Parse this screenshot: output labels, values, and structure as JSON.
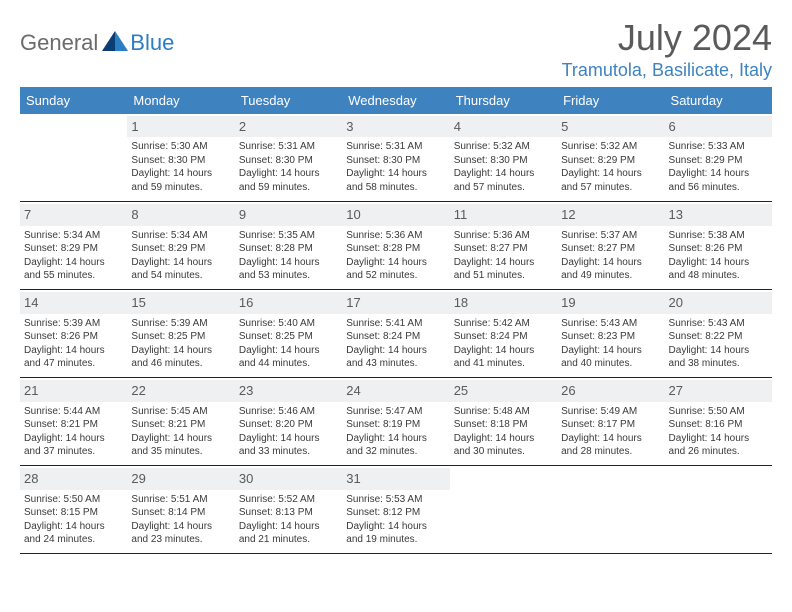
{
  "logo": {
    "text1": "General",
    "text2": "Blue"
  },
  "title": "July 2024",
  "location": "Tramutola, Basilicate, Italy",
  "colors": {
    "header_bg": "#3e83c0",
    "header_text": "#ffffff",
    "title_color": "#5a5a5a",
    "location_color": "#3e83c0",
    "cell_text": "#3a3a3a",
    "daynum_bg": "#eef0f1",
    "border_color": "#0a2a4a",
    "logo_gray": "#6b6b6b",
    "logo_blue": "#2a7ec4"
  },
  "dayNames": [
    "Sunday",
    "Monday",
    "Tuesday",
    "Wednesday",
    "Thursday",
    "Friday",
    "Saturday"
  ],
  "weeks": [
    [
      {
        "num": "",
        "lines": []
      },
      {
        "num": "1",
        "lines": [
          "Sunrise: 5:30 AM",
          "Sunset: 8:30 PM",
          "Daylight: 14 hours and 59 minutes."
        ]
      },
      {
        "num": "2",
        "lines": [
          "Sunrise: 5:31 AM",
          "Sunset: 8:30 PM",
          "Daylight: 14 hours and 59 minutes."
        ]
      },
      {
        "num": "3",
        "lines": [
          "Sunrise: 5:31 AM",
          "Sunset: 8:30 PM",
          "Daylight: 14 hours and 58 minutes."
        ]
      },
      {
        "num": "4",
        "lines": [
          "Sunrise: 5:32 AM",
          "Sunset: 8:30 PM",
          "Daylight: 14 hours and 57 minutes."
        ]
      },
      {
        "num": "5",
        "lines": [
          "Sunrise: 5:32 AM",
          "Sunset: 8:29 PM",
          "Daylight: 14 hours and 57 minutes."
        ]
      },
      {
        "num": "6",
        "lines": [
          "Sunrise: 5:33 AM",
          "Sunset: 8:29 PM",
          "Daylight: 14 hours and 56 minutes."
        ]
      }
    ],
    [
      {
        "num": "7",
        "lines": [
          "Sunrise: 5:34 AM",
          "Sunset: 8:29 PM",
          "Daylight: 14 hours and 55 minutes."
        ]
      },
      {
        "num": "8",
        "lines": [
          "Sunrise: 5:34 AM",
          "Sunset: 8:29 PM",
          "Daylight: 14 hours and 54 minutes."
        ]
      },
      {
        "num": "9",
        "lines": [
          "Sunrise: 5:35 AM",
          "Sunset: 8:28 PM",
          "Daylight: 14 hours and 53 minutes."
        ]
      },
      {
        "num": "10",
        "lines": [
          "Sunrise: 5:36 AM",
          "Sunset: 8:28 PM",
          "Daylight: 14 hours and 52 minutes."
        ]
      },
      {
        "num": "11",
        "lines": [
          "Sunrise: 5:36 AM",
          "Sunset: 8:27 PM",
          "Daylight: 14 hours and 51 minutes."
        ]
      },
      {
        "num": "12",
        "lines": [
          "Sunrise: 5:37 AM",
          "Sunset: 8:27 PM",
          "Daylight: 14 hours and 49 minutes."
        ]
      },
      {
        "num": "13",
        "lines": [
          "Sunrise: 5:38 AM",
          "Sunset: 8:26 PM",
          "Daylight: 14 hours and 48 minutes."
        ]
      }
    ],
    [
      {
        "num": "14",
        "lines": [
          "Sunrise: 5:39 AM",
          "Sunset: 8:26 PM",
          "Daylight: 14 hours and 47 minutes."
        ]
      },
      {
        "num": "15",
        "lines": [
          "Sunrise: 5:39 AM",
          "Sunset: 8:25 PM",
          "Daylight: 14 hours and 46 minutes."
        ]
      },
      {
        "num": "16",
        "lines": [
          "Sunrise: 5:40 AM",
          "Sunset: 8:25 PM",
          "Daylight: 14 hours and 44 minutes."
        ]
      },
      {
        "num": "17",
        "lines": [
          "Sunrise: 5:41 AM",
          "Sunset: 8:24 PM",
          "Daylight: 14 hours and 43 minutes."
        ]
      },
      {
        "num": "18",
        "lines": [
          "Sunrise: 5:42 AM",
          "Sunset: 8:24 PM",
          "Daylight: 14 hours and 41 minutes."
        ]
      },
      {
        "num": "19",
        "lines": [
          "Sunrise: 5:43 AM",
          "Sunset: 8:23 PM",
          "Daylight: 14 hours and 40 minutes."
        ]
      },
      {
        "num": "20",
        "lines": [
          "Sunrise: 5:43 AM",
          "Sunset: 8:22 PM",
          "Daylight: 14 hours and 38 minutes."
        ]
      }
    ],
    [
      {
        "num": "21",
        "lines": [
          "Sunrise: 5:44 AM",
          "Sunset: 8:21 PM",
          "Daylight: 14 hours and 37 minutes."
        ]
      },
      {
        "num": "22",
        "lines": [
          "Sunrise: 5:45 AM",
          "Sunset: 8:21 PM",
          "Daylight: 14 hours and 35 minutes."
        ]
      },
      {
        "num": "23",
        "lines": [
          "Sunrise: 5:46 AM",
          "Sunset: 8:20 PM",
          "Daylight: 14 hours and 33 minutes."
        ]
      },
      {
        "num": "24",
        "lines": [
          "Sunrise: 5:47 AM",
          "Sunset: 8:19 PM",
          "Daylight: 14 hours and 32 minutes."
        ]
      },
      {
        "num": "25",
        "lines": [
          "Sunrise: 5:48 AM",
          "Sunset: 8:18 PM",
          "Daylight: 14 hours and 30 minutes."
        ]
      },
      {
        "num": "26",
        "lines": [
          "Sunrise: 5:49 AM",
          "Sunset: 8:17 PM",
          "Daylight: 14 hours and 28 minutes."
        ]
      },
      {
        "num": "27",
        "lines": [
          "Sunrise: 5:50 AM",
          "Sunset: 8:16 PM",
          "Daylight: 14 hours and 26 minutes."
        ]
      }
    ],
    [
      {
        "num": "28",
        "lines": [
          "Sunrise: 5:50 AM",
          "Sunset: 8:15 PM",
          "Daylight: 14 hours and 24 minutes."
        ]
      },
      {
        "num": "29",
        "lines": [
          "Sunrise: 5:51 AM",
          "Sunset: 8:14 PM",
          "Daylight: 14 hours and 23 minutes."
        ]
      },
      {
        "num": "30",
        "lines": [
          "Sunrise: 5:52 AM",
          "Sunset: 8:13 PM",
          "Daylight: 14 hours and 21 minutes."
        ]
      },
      {
        "num": "31",
        "lines": [
          "Sunrise: 5:53 AM",
          "Sunset: 8:12 PM",
          "Daylight: 14 hours and 19 minutes."
        ]
      },
      {
        "num": "",
        "lines": []
      },
      {
        "num": "",
        "lines": []
      },
      {
        "num": "",
        "lines": []
      }
    ]
  ]
}
